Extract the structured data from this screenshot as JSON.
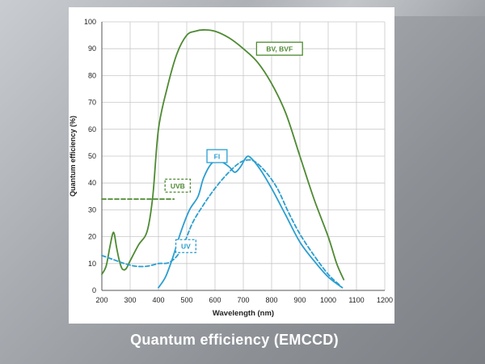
{
  "caption": "Quantum efficiency (EMCCD)",
  "chart_data": {
    "type": "line",
    "xlabel": "Wavelength (nm)",
    "ylabel": "Quantum efficiency (%)",
    "xlim": [
      200,
      1200
    ],
    "ylim": [
      0,
      100
    ],
    "xticks": [
      200,
      300,
      400,
      500,
      600,
      700,
      800,
      900,
      1000,
      1100,
      1200
    ],
    "yticks": [
      0,
      10,
      20,
      30,
      40,
      50,
      60,
      70,
      80,
      90,
      100
    ],
    "grid": true,
    "series": [
      {
        "name": "BV, BVF",
        "color": "#4e8a32",
        "style": "solid",
        "points": [
          [
            200,
            6
          ],
          [
            215,
            9
          ],
          [
            228,
            16
          ],
          [
            238,
            21
          ],
          [
            244,
            21
          ],
          [
            252,
            16
          ],
          [
            262,
            11
          ],
          [
            272,
            8
          ],
          [
            285,
            8
          ],
          [
            300,
            11
          ],
          [
            330,
            17
          ],
          [
            360,
            22
          ],
          [
            380,
            35
          ],
          [
            400,
            60
          ],
          [
            430,
            75
          ],
          [
            465,
            88
          ],
          [
            500,
            95
          ],
          [
            530,
            96.5
          ],
          [
            560,
            97
          ],
          [
            600,
            96.5
          ],
          [
            650,
            94
          ],
          [
            700,
            90
          ],
          [
            750,
            85
          ],
          [
            800,
            77
          ],
          [
            850,
            66
          ],
          [
            900,
            50
          ],
          [
            950,
            34
          ],
          [
            1000,
            20
          ],
          [
            1030,
            10
          ],
          [
            1055,
            4
          ]
        ]
      },
      {
        "name": "UVB",
        "color": "#4e8a32",
        "style": "dashed",
        "points": [
          [
            200,
            34
          ],
          [
            455,
            34
          ]
        ]
      },
      {
        "name": "FI",
        "color": "#2a9ed0",
        "style": "solid",
        "points": [
          [
            400,
            1
          ],
          [
            425,
            5
          ],
          [
            450,
            12
          ],
          [
            480,
            22
          ],
          [
            510,
            30
          ],
          [
            540,
            35
          ],
          [
            560,
            42
          ],
          [
            590,
            47.5
          ],
          [
            620,
            48
          ],
          [
            650,
            46
          ],
          [
            670,
            44
          ],
          [
            690,
            46
          ],
          [
            710,
            49.5
          ],
          [
            725,
            49.5
          ],
          [
            760,
            45
          ],
          [
            800,
            38
          ],
          [
            850,
            28
          ],
          [
            900,
            18
          ],
          [
            950,
            11
          ],
          [
            1000,
            5
          ],
          [
            1050,
            1
          ]
        ]
      },
      {
        "name": "UV",
        "color": "#2a9ed0",
        "style": "dashed",
        "points": [
          [
            200,
            13
          ],
          [
            240,
            11.5
          ],
          [
            280,
            10
          ],
          [
            320,
            9
          ],
          [
            360,
            9
          ],
          [
            400,
            10
          ],
          [
            440,
            10.5
          ],
          [
            480,
            15
          ],
          [
            520,
            25
          ],
          [
            560,
            32
          ],
          [
            600,
            38
          ],
          [
            640,
            43
          ],
          [
            680,
            47
          ],
          [
            710,
            48.5
          ],
          [
            740,
            48
          ],
          [
            780,
            44
          ],
          [
            820,
            38
          ],
          [
            860,
            29
          ],
          [
            900,
            21
          ],
          [
            950,
            13
          ],
          [
            1000,
            6
          ],
          [
            1040,
            2
          ]
        ]
      }
    ],
    "annotations": [
      {
        "text": "BV, BVF",
        "color": "#4e8a32",
        "box": "solid",
        "x": 828,
        "y": 90
      },
      {
        "text": "FI",
        "color": "#2a9ed0",
        "box": "solid",
        "x": 607,
        "y": 50
      },
      {
        "text": "UVB",
        "color": "#4e8a32",
        "box": "dashed",
        "x": 468,
        "y": 39
      },
      {
        "text": "UV",
        "color": "#2a9ed0",
        "box": "dashed",
        "x": 497,
        "y": 16.5
      }
    ]
  }
}
